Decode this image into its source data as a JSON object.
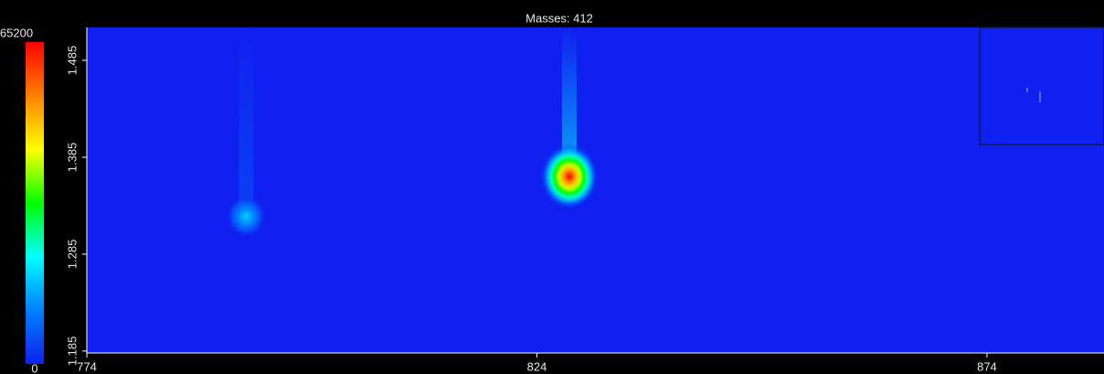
{
  "chart_data": {
    "type": "heatmap",
    "title": "Masses: 412",
    "x": [
      791.7,
      827.6
    ],
    "y": [
      1.324,
      1.365
    ],
    "values": [
      18000,
      65200
    ],
    "colorlim": [
      0,
      65200
    ],
    "colorscale": [
      "#1020f0",
      "#0080ff",
      "#00ffff",
      "#00ff00",
      "#ffff00",
      "#ff8000",
      "#ff0000"
    ],
    "xlim": [
      774,
      887
    ],
    "xticks": [
      774,
      824,
      874
    ],
    "ylim": [
      1.183,
      1.519
    ],
    "yticks": [
      1.185,
      1.285,
      1.385,
      1.485
    ]
  }
}
